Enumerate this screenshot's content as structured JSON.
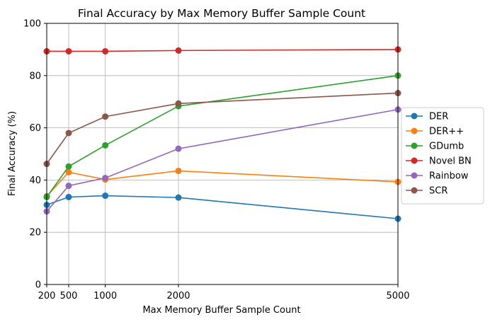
{
  "chart_data": {
    "type": "line",
    "title": "Final Accuracy by Max Memory Buffer Sample Count",
    "xlabel": "Max Memory Buffer Sample Count",
    "ylabel": "Final Accuracy (%)",
    "x": [
      200,
      500,
      1000,
      2000,
      5000
    ],
    "xlim": [
      200,
      5000
    ],
    "ylim": [
      0,
      100
    ],
    "xticks": [
      200,
      500,
      1000,
      2000,
      5000
    ],
    "yticks": [
      0,
      20,
      40,
      60,
      80,
      100
    ],
    "grid": "vertical lines at x ticks, horizontal lines at y ticks",
    "legend_position": "right, outside plot",
    "series": [
      {
        "name": "DER",
        "color": "#1f77b4",
        "values": [
          30.5,
          33.5,
          34.0,
          33.3,
          25.2
        ]
      },
      {
        "name": "DER++",
        "color": "#ff7f0e",
        "values": [
          33.8,
          43.0,
          40.2,
          43.5,
          39.3
        ]
      },
      {
        "name": "GDumb",
        "color": "#2ca02c",
        "values": [
          33.5,
          45.2,
          53.3,
          68.3,
          80.0
        ]
      },
      {
        "name": "Novel BN",
        "color": "#d62728",
        "values": [
          89.3,
          89.3,
          89.3,
          89.6,
          90.0
        ]
      },
      {
        "name": "Rainbow",
        "color": "#9467bd",
        "values": [
          28.0,
          37.8,
          40.8,
          52.0,
          67.0
        ]
      },
      {
        "name": "SCR",
        "color": "#8c564b",
        "values": [
          46.2,
          58.0,
          64.3,
          69.3,
          73.3
        ]
      }
    ]
  }
}
